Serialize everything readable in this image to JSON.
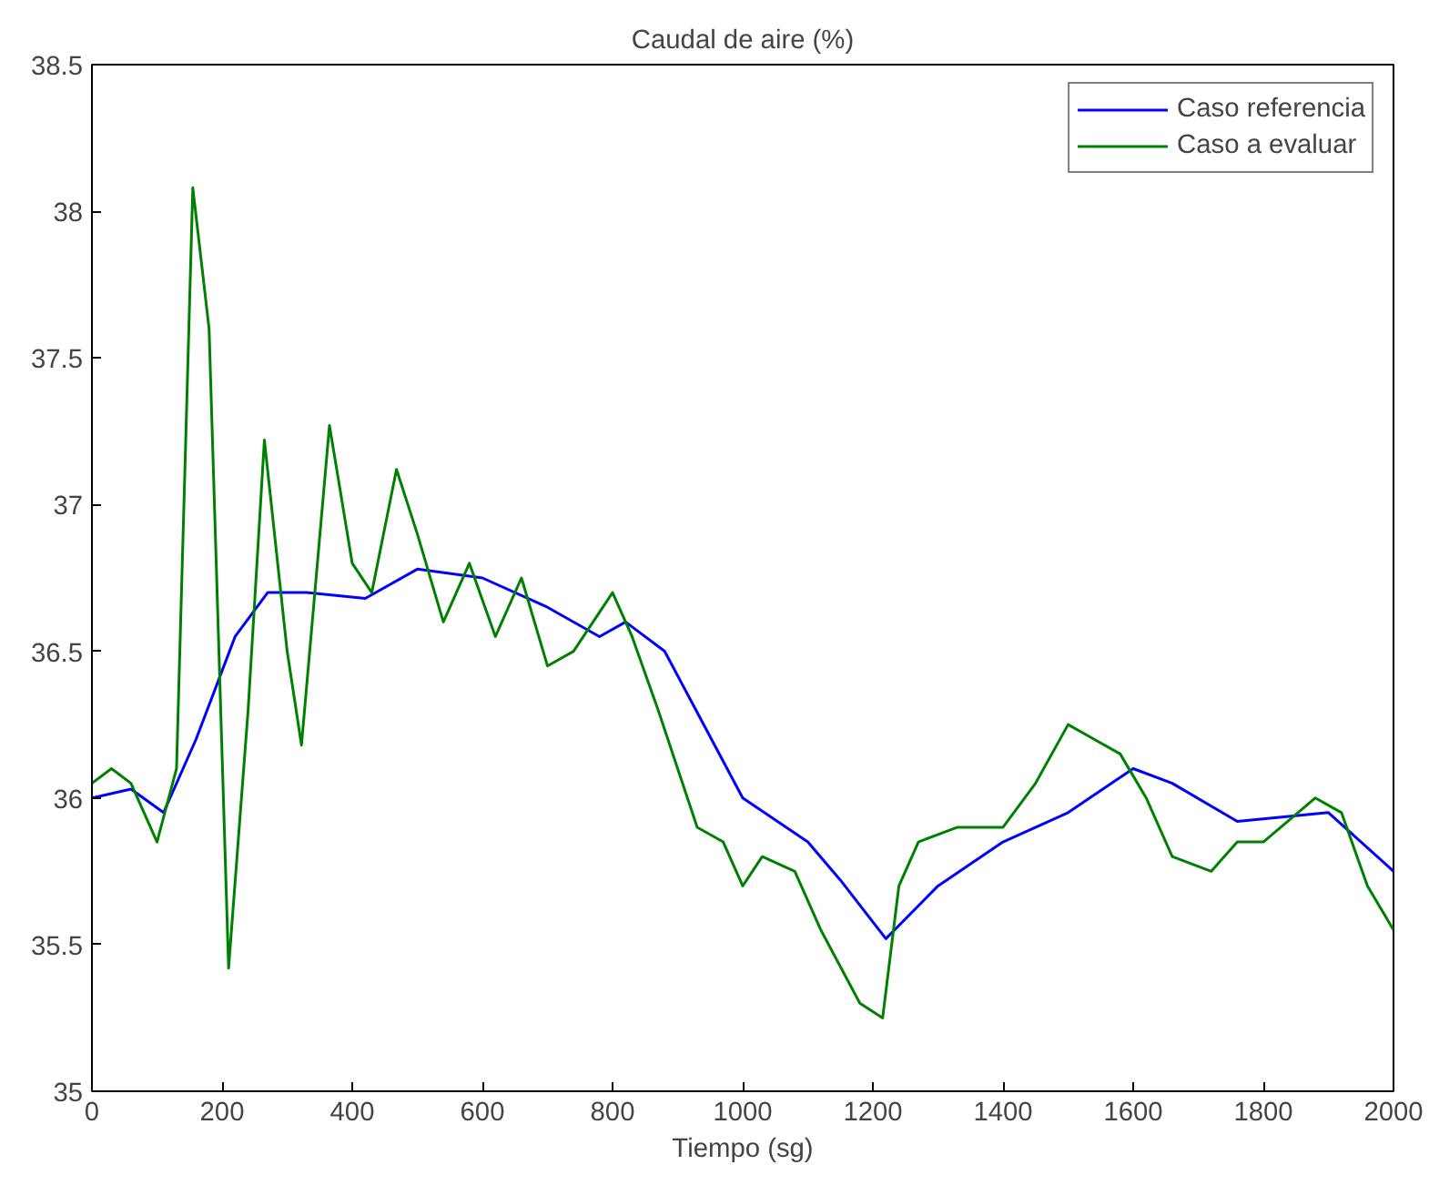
{
  "chart_data": {
    "type": "line",
    "title": "Caudal de aire (%)",
    "xlabel": "Tiempo (sg)",
    "xlim": [
      0,
      2000
    ],
    "xticks": [
      0,
      200,
      400,
      600,
      800,
      1000,
      1200,
      1400,
      1600,
      1800,
      2000
    ],
    "ylim": [
      35,
      38.5
    ],
    "yticks": [
      35,
      35.5,
      36,
      36.5,
      37,
      37.5,
      38,
      38.5
    ],
    "grid": false,
    "legend": "top right",
    "line_style": "solid",
    "marker": "none",
    "series": [
      {
        "name": "Caso referencia",
        "color": "#0000ff",
        "x": [
          0,
          60,
          110,
          160,
          220,
          270,
          330,
          420,
          500,
          600,
          700,
          780,
          820,
          880,
          1000,
          1100,
          1150,
          1220,
          1300,
          1400,
          1500,
          1600,
          1660,
          1760,
          1900,
          2000
        ],
        "values": [
          36.0,
          36.03,
          35.95,
          36.2,
          36.55,
          36.7,
          36.7,
          36.68,
          36.78,
          36.75,
          36.65,
          36.55,
          36.6,
          36.5,
          36.0,
          35.85,
          35.72,
          35.52,
          35.7,
          35.85,
          35.95,
          36.1,
          36.05,
          35.92,
          35.95,
          35.75
        ]
      },
      {
        "name": "Caso a evaluar",
        "color": "#008000",
        "x": [
          0,
          30,
          60,
          100,
          130,
          155,
          180,
          210,
          240,
          265,
          300,
          322,
          365,
          400,
          430,
          468,
          500,
          540,
          580,
          620,
          660,
          700,
          740,
          800,
          830,
          870,
          900,
          930,
          970,
          1000,
          1030,
          1080,
          1120,
          1180,
          1215,
          1240,
          1270,
          1330,
          1400,
          1450,
          1500,
          1540,
          1580,
          1620,
          1660,
          1720,
          1760,
          1800,
          1880,
          1920,
          1960,
          2000
        ],
        "values": [
          36.05,
          36.1,
          36.05,
          35.85,
          36.1,
          38.08,
          37.6,
          35.42,
          36.3,
          37.22,
          36.5,
          36.18,
          37.27,
          36.8,
          36.7,
          37.12,
          36.9,
          36.6,
          36.8,
          36.55,
          36.75,
          36.45,
          36.5,
          36.7,
          36.55,
          36.3,
          36.1,
          35.9,
          35.85,
          35.7,
          35.8,
          35.75,
          35.55,
          35.3,
          35.25,
          35.7,
          35.85,
          35.9,
          35.9,
          36.05,
          36.25,
          36.2,
          36.15,
          36.0,
          35.8,
          35.75,
          35.85,
          35.85,
          36.0,
          35.95,
          35.7,
          35.55
        ]
      }
    ]
  }
}
